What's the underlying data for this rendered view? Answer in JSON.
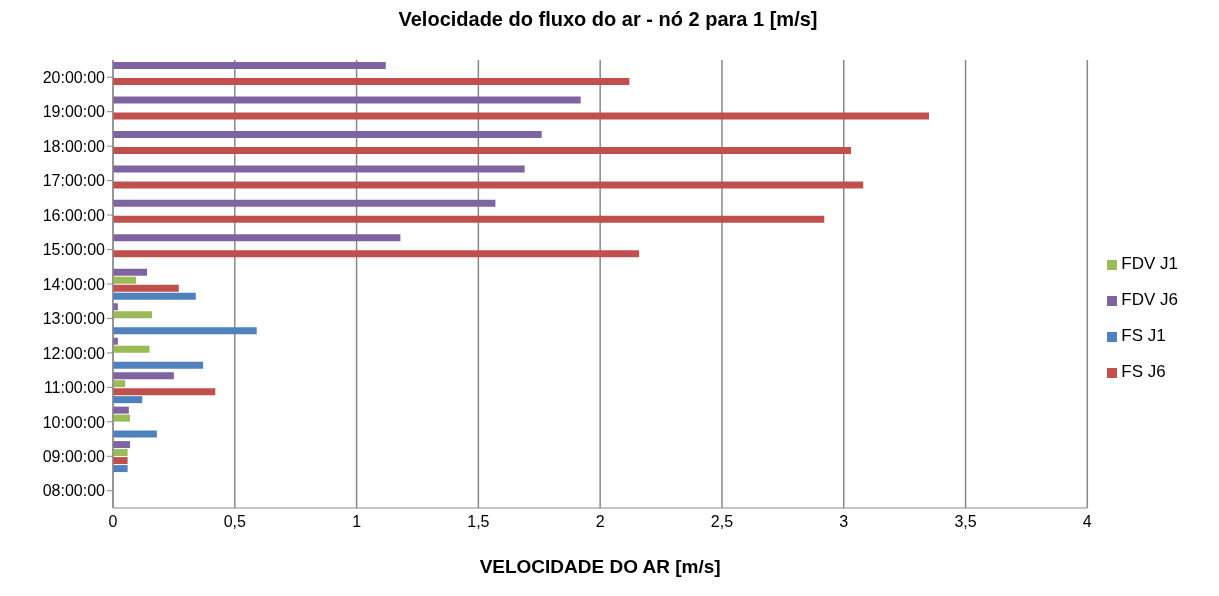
{
  "chart_data": {
    "type": "bar",
    "orientation": "horizontal",
    "title": "Velocidade do fluxo do ar - nó 2 para 1 [m/s]",
    "xlabel": "VELOCIDADE DO AR [m/s]",
    "categories": [
      "20:00:00",
      "19:00:00",
      "18:00:00",
      "17:00:00",
      "16:00:00",
      "15:00:00",
      "14:00:00",
      "13:00:00",
      "12:00:00",
      "11:00:00",
      "10:00:00",
      "09:00:00",
      "08:00:00"
    ],
    "series": [
      {
        "name": "FS J1",
        "color": "#4f81bd",
        "values": [
          null,
          null,
          null,
          null,
          null,
          null,
          0.34,
          0.59,
          0.37,
          0.12,
          0.18,
          0.06,
          null
        ]
      },
      {
        "name": "FS J6",
        "color": "#c0504d",
        "values": [
          2.12,
          3.35,
          3.03,
          3.08,
          2.92,
          2.16,
          0.27,
          null,
          null,
          0.42,
          null,
          0.06,
          null
        ]
      },
      {
        "name": "FDV J1",
        "color": "#9bbb59",
        "values": [
          null,
          null,
          null,
          null,
          null,
          null,
          0.095,
          0.16,
          0.15,
          0.05,
          0.07,
          0.06,
          null
        ]
      },
      {
        "name": "FDV J6",
        "color": "#8064a2",
        "values": [
          1.12,
          1.92,
          1.76,
          1.69,
          1.57,
          1.18,
          0.14,
          0.02,
          0.02,
          0.25,
          0.065,
          0.07,
          null
        ]
      }
    ],
    "xlim": [
      0,
      4
    ],
    "xticks": [
      0,
      {
        "value": 0.5,
        "label": "0,5"
      },
      1,
      {
        "value": 1.5,
        "label": "1,5"
      },
      2,
      {
        "value": 2.5,
        "label": "2,5"
      },
      3,
      {
        "value": 3.5,
        "label": "3,5"
      },
      4
    ],
    "grid": "x",
    "legend": "right"
  }
}
